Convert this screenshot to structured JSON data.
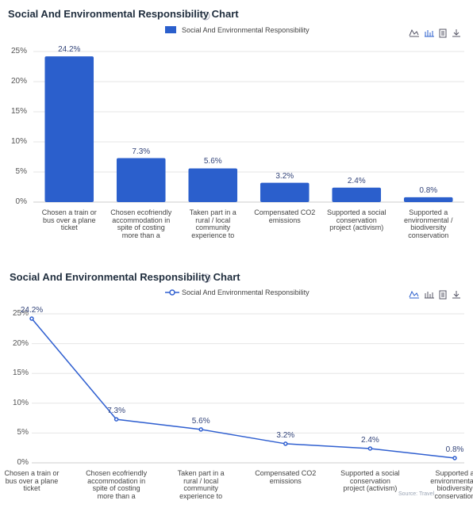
{
  "chart_data": [
    {
      "type": "bar",
      "title": "Social And Environmental Responsibility Chart",
      "categories": [
        "Chosen a train or bus over a plane ticket",
        "Chosen ecofriendly accommodation in spite of costing more than a regular one",
        "Taken part in a rural / local community experience to share their domestic life",
        "Compensated CO2 emissions",
        "Supported a social conservation project (activism)",
        "Supported a environmental / biodiversity conservation project (activism)"
      ],
      "series": [
        {
          "name": "Social And Environmental Responsibility",
          "color": "#2b5fcc",
          "values": [
            24.2,
            7.3,
            5.6,
            3.2,
            2.4,
            0.8
          ],
          "value_labels": [
            "24.2%",
            "7.3%",
            "5.6%",
            "3.2%",
            "2.4%",
            "0.8%"
          ]
        }
      ],
      "ylim": [
        0,
        25
      ],
      "yticks": [
        {
          "value": 0,
          "label": "0%"
        },
        {
          "value": 5,
          "label": "5%"
        },
        {
          "value": 10,
          "label": "10%"
        },
        {
          "value": 15,
          "label": "15%"
        },
        {
          "value": 20,
          "label": "20%"
        },
        {
          "value": 25,
          "label": "25%"
        }
      ],
      "grid": true
    },
    {
      "type": "line",
      "title": "Social And Environmental Responsibility Chart",
      "categories": [
        "Chosen a train or bus over a plane ticket",
        "Chosen ecofriendly accommodation in spite of costing more than a regular one",
        "Taken part in a rural / local community experience to share their domestic life",
        "Compensated CO2 emissions",
        "Supported a social conservation project (activism)",
        "Supported a environmental / biodiversity conservation project (activism)"
      ],
      "series": [
        {
          "name": "Social And Environmental Responsibility",
          "color": "#2f5fd0",
          "values": [
            24.2,
            7.3,
            5.6,
            3.2,
            2.4,
            0.8
          ],
          "value_labels": [
            "24.2%",
            "7.3%",
            "5.6%",
            "3.2%",
            "2.4%",
            "0.8%"
          ]
        }
      ],
      "ylim": [
        0,
        25
      ],
      "yticks": [
        {
          "value": 0,
          "label": "0%"
        },
        {
          "value": 5,
          "label": "5%"
        },
        {
          "value": 10,
          "label": "10%"
        },
        {
          "value": 15,
          "label": "15%"
        },
        {
          "value": 20,
          "label": "20%"
        },
        {
          "value": 25,
          "label": "25%"
        }
      ],
      "grid": true,
      "source": "Source: Travel"
    }
  ]
}
